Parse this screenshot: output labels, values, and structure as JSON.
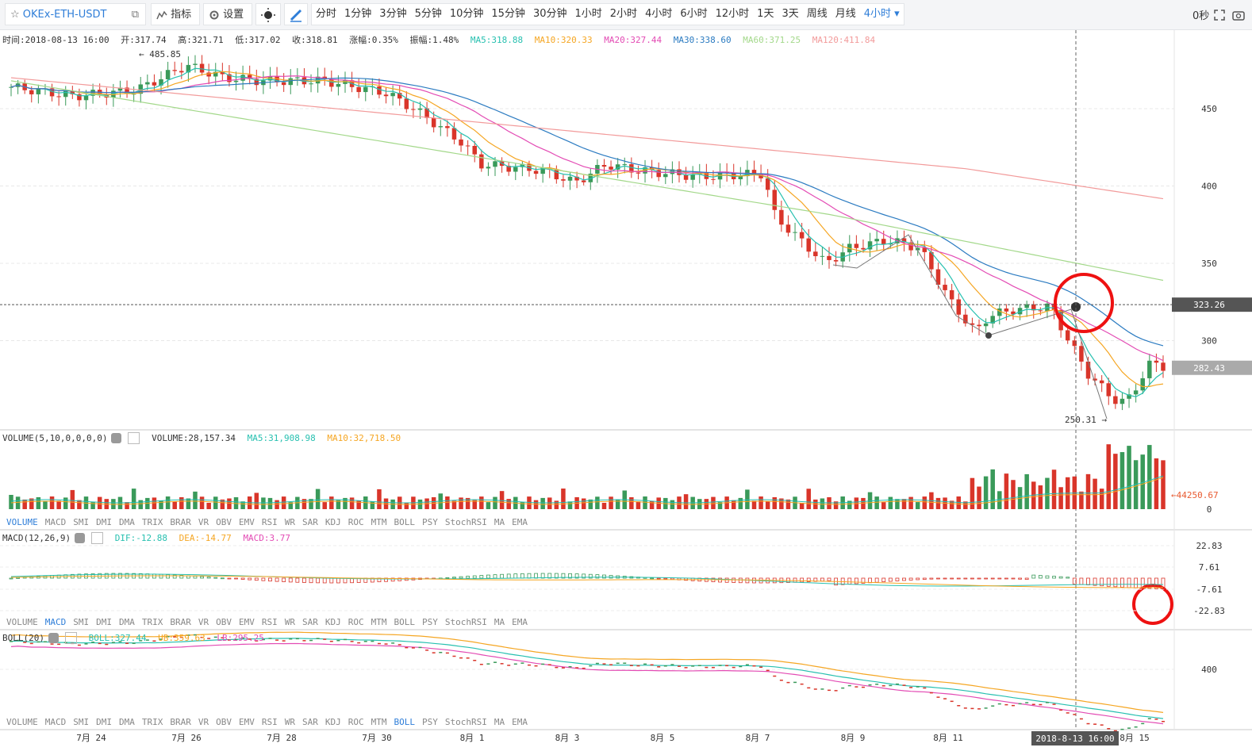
{
  "toolbar": {
    "symbol": "OKEx-ETH-USDT",
    "indicators_label": "指标",
    "settings_label": "设置",
    "periods": [
      "分时",
      "1分钟",
      "3分钟",
      "5分钟",
      "10分钟",
      "15分钟",
      "30分钟",
      "1小时",
      "2小时",
      "4小时",
      "6小时",
      "12小时",
      "1天",
      "3天",
      "周线",
      "月线",
      "4小时"
    ],
    "active_period": "4小时",
    "timer": "0秒"
  },
  "colors": {
    "up": "#3a9a5a",
    "down": "#d9352a",
    "ma5": "#27c0b0",
    "ma10": "#f5a623",
    "ma20": "#e34bb4",
    "ma30": "#2b7bc1",
    "ma60": "#a3d88a",
    "ma120": "#f29a9a",
    "highlight_circle": "#ee1111",
    "active_tab": "#2f7ed8"
  },
  "ohlc_legend": {
    "time": "时间:2018-08-13 16:00",
    "open": "开:317.74",
    "high": "高:321.71",
    "low": "低:317.02",
    "close": "收:318.81",
    "change": "涨幅:0.35%",
    "amplitude": "振幅:1.48%",
    "ma5": "MA5:318.88",
    "ma10": "MA10:320.33",
    "ma20": "MA20:327.44",
    "ma30": "MA30:338.60",
    "ma60": "MA60:371.25",
    "ma120": "MA120:411.84"
  },
  "main_axis": {
    "ticks": [
      "450",
      "400",
      "350",
      "300"
    ],
    "current_price": "323.26",
    "last_price": "282.43",
    "high_label": "← 485.85",
    "low_label": "250.31 →"
  },
  "volume_legend": {
    "name": "VOLUME(5,10,0,0,0,0)",
    "value": "VOLUME:28,157.34",
    "ma5": "MA5:31,908.98",
    "ma10": "MA10:32,718.50"
  },
  "volume_axis": {
    "last": "←44250.67",
    "zero": "0"
  },
  "macd_legend": {
    "name": "MACD(12,26,9)",
    "dif": "DIF:-12.88",
    "dea": "DEA:-14.77",
    "macd": "MACD:3.77"
  },
  "macd_axis": [
    "22.83",
    "7.61",
    "-7.61",
    "-22.83"
  ],
  "boll_legend": {
    "name": "BOLL(20)",
    "boll": "BOLL:327.44",
    "ub": "UB:359.63",
    "lb": "LB:295.25"
  },
  "boll_axis": [
    "400"
  ],
  "indicator_tabs": [
    "VOLUME",
    "MACD",
    "SMI",
    "DMI",
    "DMA",
    "TRIX",
    "BRAR",
    "VR",
    "OBV",
    "EMV",
    "RSI",
    "WR",
    "SAR",
    "KDJ",
    "ROC",
    "MTM",
    "BOLL",
    "PSY",
    "StochRSI",
    "MA",
    "EMA"
  ],
  "x_axis": {
    "labels": [
      "7月 24",
      "7月 26",
      "7月 28",
      "7月 30",
      "8月 1",
      "8月 3",
      "8月 5",
      "8月 7",
      "8月 9",
      "8月 11",
      "8月 15"
    ],
    "crosshair_label": "2018-8-13 16:00"
  }
}
